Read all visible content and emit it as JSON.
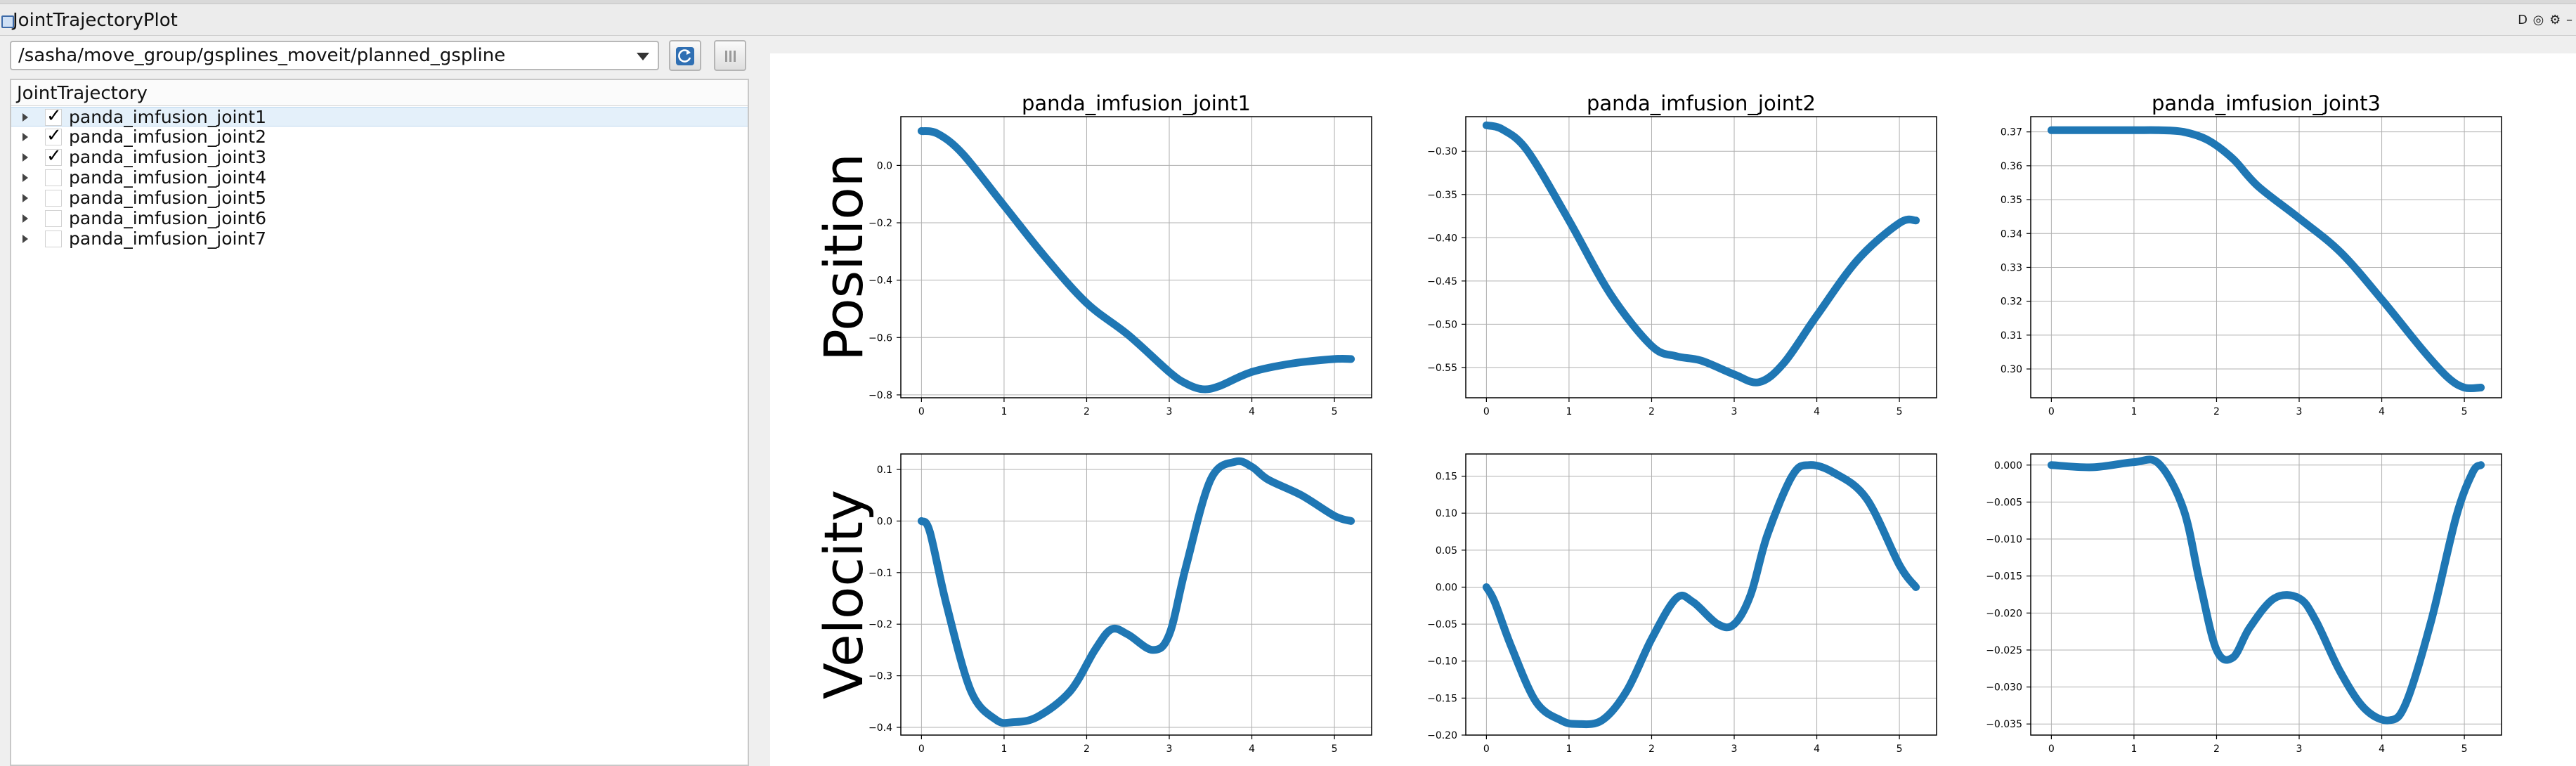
{
  "window": {
    "title": "JointTrajectoryPlot"
  },
  "toolbar": {
    "topic": "/sasha/move_group/gsplines_moveit/planned_gspline",
    "refresh_icon": "refresh-icon",
    "pause_icon": "pause-icon"
  },
  "tree": {
    "header": "JointTrajectory",
    "items": [
      {
        "label": "panda_imfusion_joint1",
        "checked": true,
        "mark": "✓"
      },
      {
        "label": "panda_imfusion_joint2",
        "checked": true,
        "mark": "✓"
      },
      {
        "label": "panda_imfusion_joint3",
        "checked": true,
        "mark": "✓"
      },
      {
        "label": "panda_imfusion_joint4",
        "checked": false,
        "mark": ""
      },
      {
        "label": "panda_imfusion_joint5",
        "checked": false,
        "mark": ""
      },
      {
        "label": "panda_imfusion_joint6",
        "checked": false,
        "mark": ""
      },
      {
        "label": "panda_imfusion_joint7",
        "checked": false,
        "mark": ""
      }
    ]
  },
  "colors": {
    "series": "#1f77b4",
    "grid": "#b0b0b0",
    "selection": "#e4f0fa"
  },
  "chart_data": [
    {
      "type": "line",
      "title": "panda_imfusion_joint1",
      "ylabel": "Position",
      "xlim": [
        -0.25,
        5.45
      ],
      "ylim": [
        -0.81,
        0.17
      ],
      "xticks": [
        0,
        1,
        2,
        3,
        4,
        5
      ],
      "yticks": [
        -0.8,
        -0.6,
        -0.4,
        -0.2,
        0.0
      ],
      "ytick_labels": [
        "−0.8",
        "−0.6",
        "−0.4",
        "−0.2",
        "0.0"
      ],
      "grid": true,
      "x": [
        0,
        0.2,
        0.5,
        1.0,
        1.5,
        2.0,
        2.5,
        3.0,
        3.2,
        3.4,
        3.6,
        4.0,
        4.5,
        5.0,
        5.2
      ],
      "y": [
        0.12,
        0.11,
        0.04,
        -0.14,
        -0.32,
        -0.48,
        -0.59,
        -0.72,
        -0.76,
        -0.78,
        -0.77,
        -0.72,
        -0.69,
        -0.675,
        -0.675
      ]
    },
    {
      "type": "line",
      "title": "panda_imfusion_joint2",
      "ylabel": "",
      "xlim": [
        -0.25,
        5.45
      ],
      "ylim": [
        -0.585,
        -0.26
      ],
      "xticks": [
        0,
        1,
        2,
        3,
        4,
        5
      ],
      "yticks": [
        -0.55,
        -0.5,
        -0.45,
        -0.4,
        -0.35,
        -0.3
      ],
      "ytick_labels": [
        "−0.55",
        "−0.50",
        "−0.45",
        "−0.40",
        "−0.35",
        "−0.30"
      ],
      "grid": true,
      "x": [
        0,
        0.2,
        0.5,
        1.0,
        1.5,
        2.0,
        2.3,
        2.6,
        3.0,
        3.3,
        3.6,
        4.0,
        4.5,
        5.0,
        5.2
      ],
      "y": [
        -0.27,
        -0.275,
        -0.3,
        -0.38,
        -0.465,
        -0.525,
        -0.537,
        -0.542,
        -0.558,
        -0.567,
        -0.545,
        -0.49,
        -0.425,
        -0.383,
        -0.38
      ]
    },
    {
      "type": "line",
      "title": "panda_imfusion_joint3",
      "ylabel": "",
      "xlim": [
        -0.25,
        5.45
      ],
      "ylim": [
        0.2915,
        0.3745
      ],
      "xticks": [
        0,
        1,
        2,
        3,
        4,
        5
      ],
      "yticks": [
        0.3,
        0.31,
        0.32,
        0.33,
        0.34,
        0.35,
        0.36,
        0.37
      ],
      "ytick_labels": [
        "0.30",
        "0.31",
        "0.32",
        "0.33",
        "0.34",
        "0.35",
        "0.36",
        "0.37"
      ],
      "grid": true,
      "x": [
        0,
        0.5,
        1.0,
        1.3,
        1.6,
        1.9,
        2.2,
        2.5,
        3.0,
        3.5,
        4.0,
        4.5,
        4.8,
        5.0,
        5.2
      ],
      "y": [
        0.3705,
        0.3705,
        0.3705,
        0.3705,
        0.37,
        0.3675,
        0.362,
        0.354,
        0.3445,
        0.3345,
        0.3205,
        0.3055,
        0.2975,
        0.2945,
        0.2945
      ]
    },
    {
      "type": "line",
      "title": "",
      "ylabel": "Velocity",
      "xlim": [
        -0.25,
        5.45
      ],
      "ylim": [
        -0.415,
        0.13
      ],
      "xticks": [
        0,
        1,
        2,
        3,
        4,
        5
      ],
      "yticks": [
        -0.4,
        -0.3,
        -0.2,
        -0.1,
        0.0,
        0.1
      ],
      "ytick_labels": [
        "−0.4",
        "−0.3",
        "−0.2",
        "−0.1",
        "0.0",
        "0.1"
      ],
      "grid": true,
      "x": [
        0,
        0.1,
        0.3,
        0.6,
        0.9,
        1.1,
        1.4,
        1.8,
        2.1,
        2.3,
        2.5,
        2.8,
        3.0,
        3.2,
        3.5,
        3.8,
        4.0,
        4.2,
        4.6,
        5.0,
        5.2
      ],
      "y": [
        0,
        -0.02,
        -0.16,
        -0.33,
        -0.385,
        -0.39,
        -0.38,
        -0.33,
        -0.25,
        -0.21,
        -0.22,
        -0.25,
        -0.22,
        -0.09,
        0.08,
        0.115,
        0.105,
        0.08,
        0.05,
        0.01,
        0.0
      ]
    },
    {
      "type": "line",
      "title": "",
      "ylabel": "",
      "xlim": [
        -0.25,
        5.45
      ],
      "ylim": [
        -0.2,
        0.18
      ],
      "xticks": [
        0,
        1,
        2,
        3,
        4,
        5
      ],
      "yticks": [
        -0.2,
        -0.15,
        -0.1,
        -0.05,
        0.0,
        0.05,
        0.1,
        0.15
      ],
      "ytick_labels": [
        "−0.20",
        "−0.15",
        "−0.10",
        "−0.05",
        "0.00",
        "0.05",
        "0.10",
        "0.15"
      ],
      "grid": true,
      "x": [
        0,
        0.1,
        0.3,
        0.6,
        0.9,
        1.1,
        1.4,
        1.7,
        2.0,
        2.3,
        2.5,
        2.8,
        3.0,
        3.2,
        3.4,
        3.7,
        3.9,
        4.2,
        4.6,
        5.0,
        5.2
      ],
      "y": [
        0,
        -0.02,
        -0.08,
        -0.155,
        -0.18,
        -0.185,
        -0.18,
        -0.14,
        -0.07,
        -0.015,
        -0.02,
        -0.05,
        -0.05,
        -0.01,
        0.07,
        0.15,
        0.165,
        0.155,
        0.12,
        0.03,
        0.0
      ]
    },
    {
      "type": "line",
      "title": "",
      "ylabel": "",
      "xlim": [
        -0.25,
        5.45
      ],
      "ylim": [
        -0.0365,
        0.0015
      ],
      "xticks": [
        0,
        1,
        2,
        3,
        4,
        5
      ],
      "yticks": [
        -0.035,
        -0.03,
        -0.025,
        -0.02,
        -0.015,
        -0.01,
        -0.005,
        0.0
      ],
      "ytick_labels": [
        "−0.035",
        "−0.030",
        "−0.025",
        "−0.020",
        "−0.015",
        "−0.010",
        "−0.005",
        "0.000"
      ],
      "grid": true,
      "x": [
        0,
        0.5,
        1.0,
        1.3,
        1.6,
        1.8,
        2.0,
        2.2,
        2.4,
        2.7,
        3.0,
        3.2,
        3.5,
        3.8,
        4.1,
        4.3,
        4.6,
        4.9,
        5.1,
        5.2
      ],
      "y": [
        0,
        -0.0003,
        0.0004,
        0.0002,
        -0.006,
        -0.016,
        -0.025,
        -0.026,
        -0.022,
        -0.018,
        -0.018,
        -0.021,
        -0.028,
        -0.033,
        -0.0345,
        -0.032,
        -0.021,
        -0.007,
        -0.001,
        0.0
      ]
    }
  ]
}
